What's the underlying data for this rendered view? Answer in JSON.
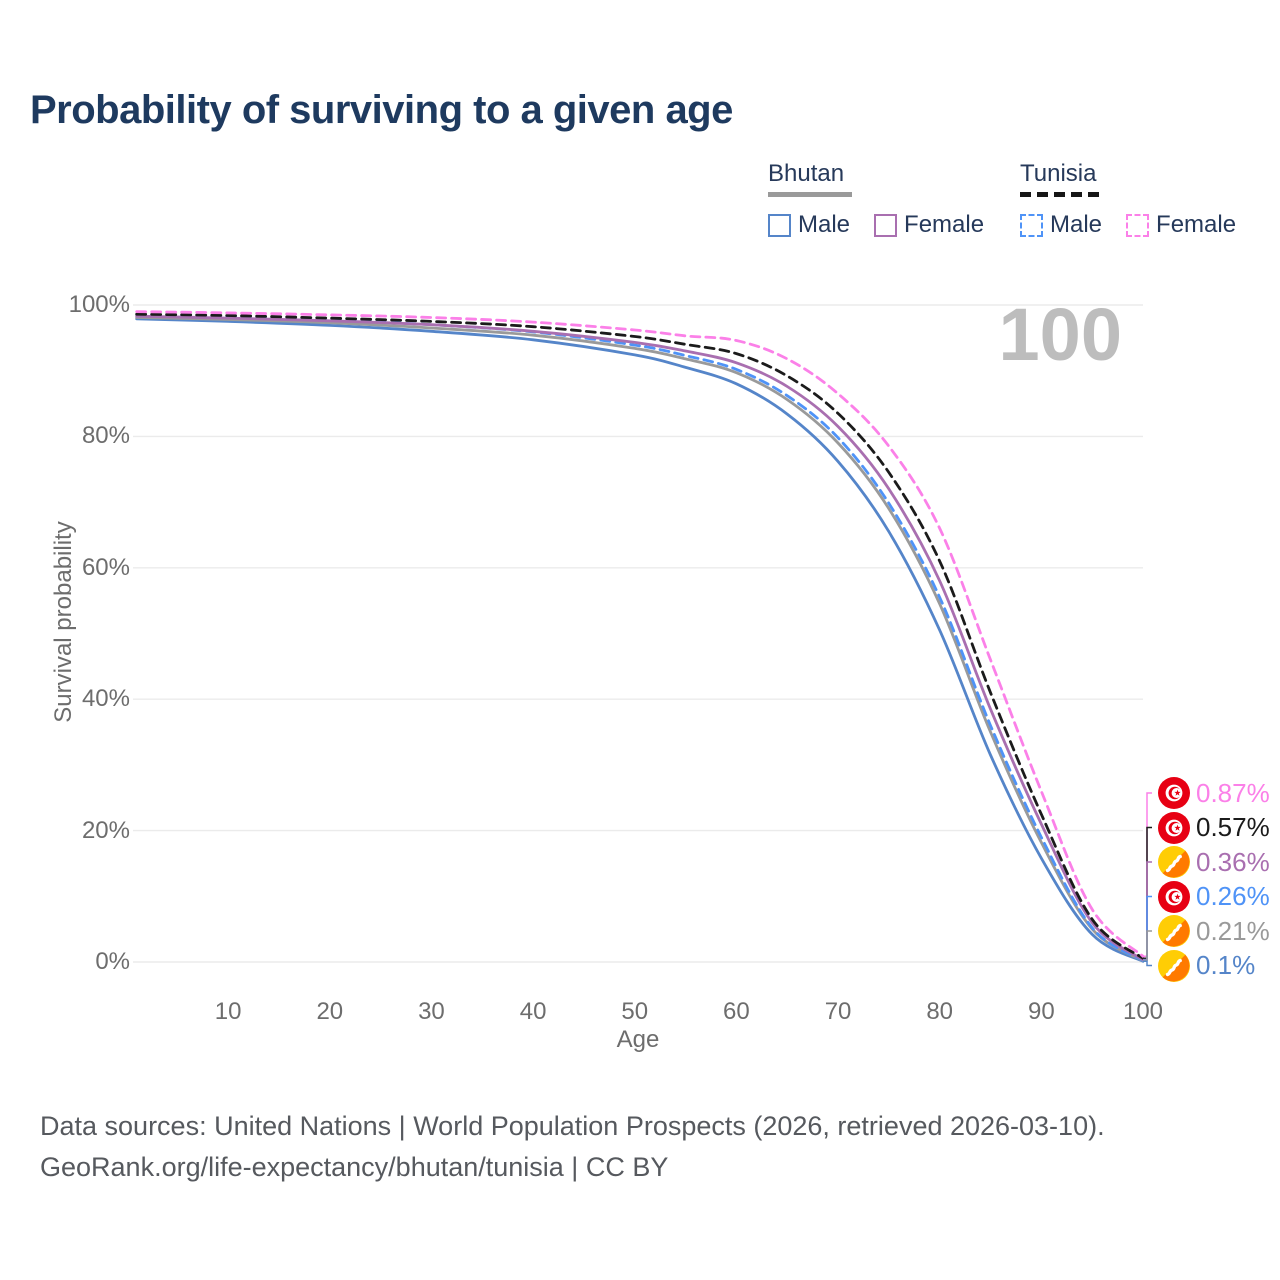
{
  "title": "Probability of surviving to a given age",
  "watermark": "100",
  "legend": {
    "groups": [
      {
        "country": "Bhutan",
        "line_style": "solid",
        "underline_color": "#9a9a9a",
        "items": [
          {
            "label": "Male",
            "color": "#5585c9",
            "dashed": false
          },
          {
            "label": "Female",
            "color": "#a96fb0",
            "dashed": false
          }
        ]
      },
      {
        "country": "Tunisia",
        "line_style": "dashed",
        "underline_color": "#161616",
        "items": [
          {
            "label": "Male",
            "color": "#4f93f7",
            "dashed": true
          },
          {
            "label": "Female",
            "color": "#fb80e8",
            "dashed": true
          }
        ]
      }
    ]
  },
  "chart_data": {
    "type": "line",
    "title": "Probability of surviving to a given age",
    "xlabel": "Age",
    "ylabel": "Survival probability",
    "xlim": [
      0,
      100
    ],
    "ylim": [
      0,
      100
    ],
    "grid": "horizontal",
    "x_ticks": [
      10,
      20,
      30,
      40,
      50,
      60,
      70,
      80,
      90,
      100
    ],
    "y_ticks": [
      {
        "v": 0,
        "label": "0%"
      },
      {
        "v": 20,
        "label": "20%"
      },
      {
        "v": 40,
        "label": "40%"
      },
      {
        "v": 60,
        "label": "60%"
      },
      {
        "v": 80,
        "label": "80%"
      },
      {
        "v": 100,
        "label": "100%"
      }
    ],
    "x": [
      1,
      10,
      20,
      30,
      40,
      50,
      55,
      60,
      65,
      70,
      75,
      80,
      85,
      90,
      95,
      100
    ],
    "series": [
      {
        "name": "Tunisia Female",
        "country": "Tunisia",
        "sex": "Female",
        "flag": "tunisia",
        "color": "#fb80e8",
        "dashed": true,
        "end_label": "0.87%",
        "values": [
          99.0,
          98.8,
          98.5,
          98.1,
          97.4,
          96.2,
          95.3,
          94.6,
          91.8,
          86.5,
          78.5,
          66.0,
          46.0,
          26.0,
          8.0,
          0.87
        ]
      },
      {
        "name": "Tunisia",
        "country": "Tunisia",
        "sex": "Both",
        "flag": "tunisia",
        "color": "#1b1b1b",
        "dashed": true,
        "end_label": "0.57%",
        "values": [
          98.6,
          98.4,
          98.0,
          97.5,
          96.7,
          95.2,
          94.0,
          92.6,
          89.2,
          83.5,
          74.5,
          61.0,
          41.0,
          22.5,
          6.5,
          0.57
        ]
      },
      {
        "name": "Bhutan Female",
        "country": "Bhutan",
        "sex": "Female",
        "flag": "bhutan",
        "color": "#a96fb0",
        "dashed": false,
        "end_label": "0.36%",
        "values": [
          98.3,
          98.0,
          97.6,
          97.0,
          96.0,
          94.3,
          93.0,
          91.2,
          87.6,
          81.5,
          72.0,
          58.0,
          38.5,
          21.0,
          6.0,
          0.36
        ]
      },
      {
        "name": "Tunisia Male",
        "country": "Tunisia",
        "sex": "Male",
        "flag": "tunisia",
        "color": "#4f93f7",
        "dashed": true,
        "end_label": "0.26%",
        "values": [
          98.5,
          98.2,
          97.7,
          97.0,
          95.9,
          93.9,
          92.3,
          90.2,
          86.2,
          79.8,
          69.8,
          55.5,
          36.0,
          19.0,
          5.2,
          0.26
        ]
      },
      {
        "name": "Bhutan",
        "country": "Bhutan",
        "sex": "Both",
        "flag": "bhutan",
        "color": "#9a9a9a",
        "dashed": false,
        "end_label": "0.21%",
        "values": [
          98.1,
          97.8,
          97.3,
          96.5,
          95.4,
          93.4,
          91.8,
          89.7,
          85.6,
          79.0,
          69.0,
          54.5,
          35.0,
          18.2,
          5.0,
          0.21
        ]
      },
      {
        "name": "Bhutan Male",
        "country": "Bhutan",
        "sex": "Male",
        "flag": "bhutan",
        "color": "#5585c9",
        "dashed": false,
        "end_label": "0.1%",
        "values": [
          97.9,
          97.5,
          96.9,
          96.0,
          94.7,
          92.4,
          90.5,
          88.0,
          83.4,
          76.2,
          65.5,
          50.5,
          31.5,
          15.8,
          4.2,
          0.1
        ]
      }
    ]
  },
  "footer": {
    "line1": "Data sources: United Nations | World Population Prospects (2026, retrieved 2026-03-10).",
    "line2": "GeoRank.org/life-expectancy/bhutan/tunisia | CC BY"
  }
}
